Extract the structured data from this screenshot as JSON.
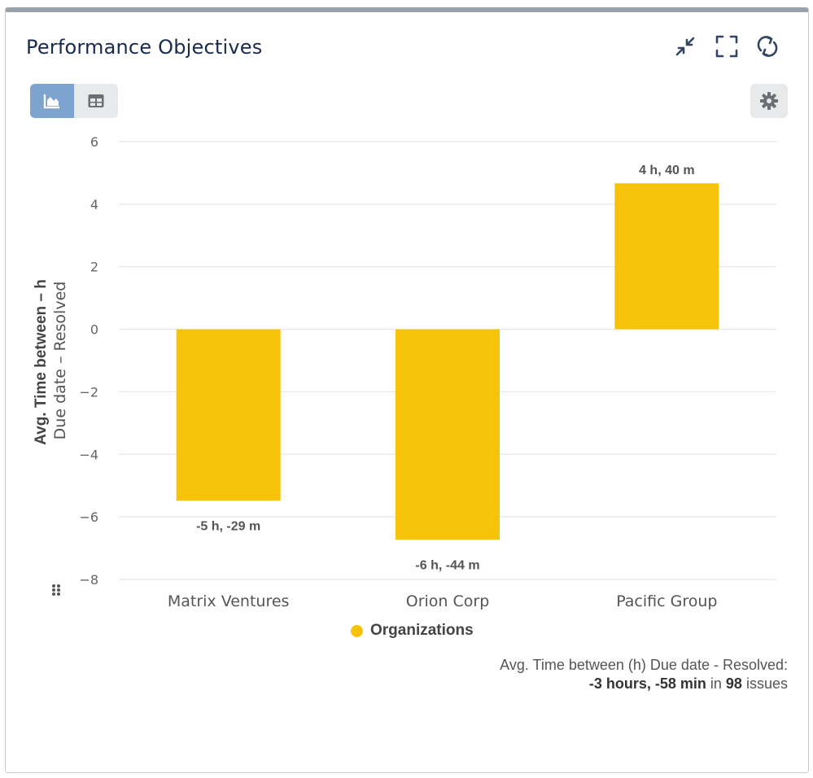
{
  "header": {
    "title": "Performance Objectives",
    "icons": [
      "collapse-icon",
      "fullscreen-icon",
      "refresh-icon"
    ]
  },
  "toolbar": {
    "chart_view": "chart-view-icon",
    "table_view": "table-view-icon",
    "settings": "gear-icon"
  },
  "colors": {
    "bar": "#f6c30a",
    "active_toggle": "#7ea3cf",
    "grid": "#e6e6e6"
  },
  "chart_data": {
    "type": "bar",
    "title": "",
    "categories": [
      "Matrix Ventures",
      "Orion Corp",
      "Pacific Group"
    ],
    "series": [
      {
        "name": "Organizations",
        "values": [
          -5.483,
          -6.733,
          4.667
        ],
        "labels": [
          "-5 h, -29 m",
          "-6 h, -44 m",
          "4 h, 40 m"
        ]
      }
    ],
    "ylabel_line1": "Avg. Time between – h",
    "ylabel_line2": "Due date – Resolved",
    "ylim": [
      -8,
      6
    ],
    "yticks": [
      "6",
      "4",
      "2",
      "0",
      "−2",
      "−4",
      "−6",
      "−8"
    ],
    "ytick_values": [
      6,
      4,
      2,
      0,
      -2,
      -4,
      -6,
      -8
    ],
    "grid": true,
    "legend_position": "bottom-center"
  },
  "legend": {
    "label": "Organizations"
  },
  "summary": {
    "line1": "Avg. Time between (h) Due date - Resolved:",
    "value": "-3 hours, -58 min",
    "in_word": "in",
    "count": "98",
    "issues_word": "issues"
  }
}
